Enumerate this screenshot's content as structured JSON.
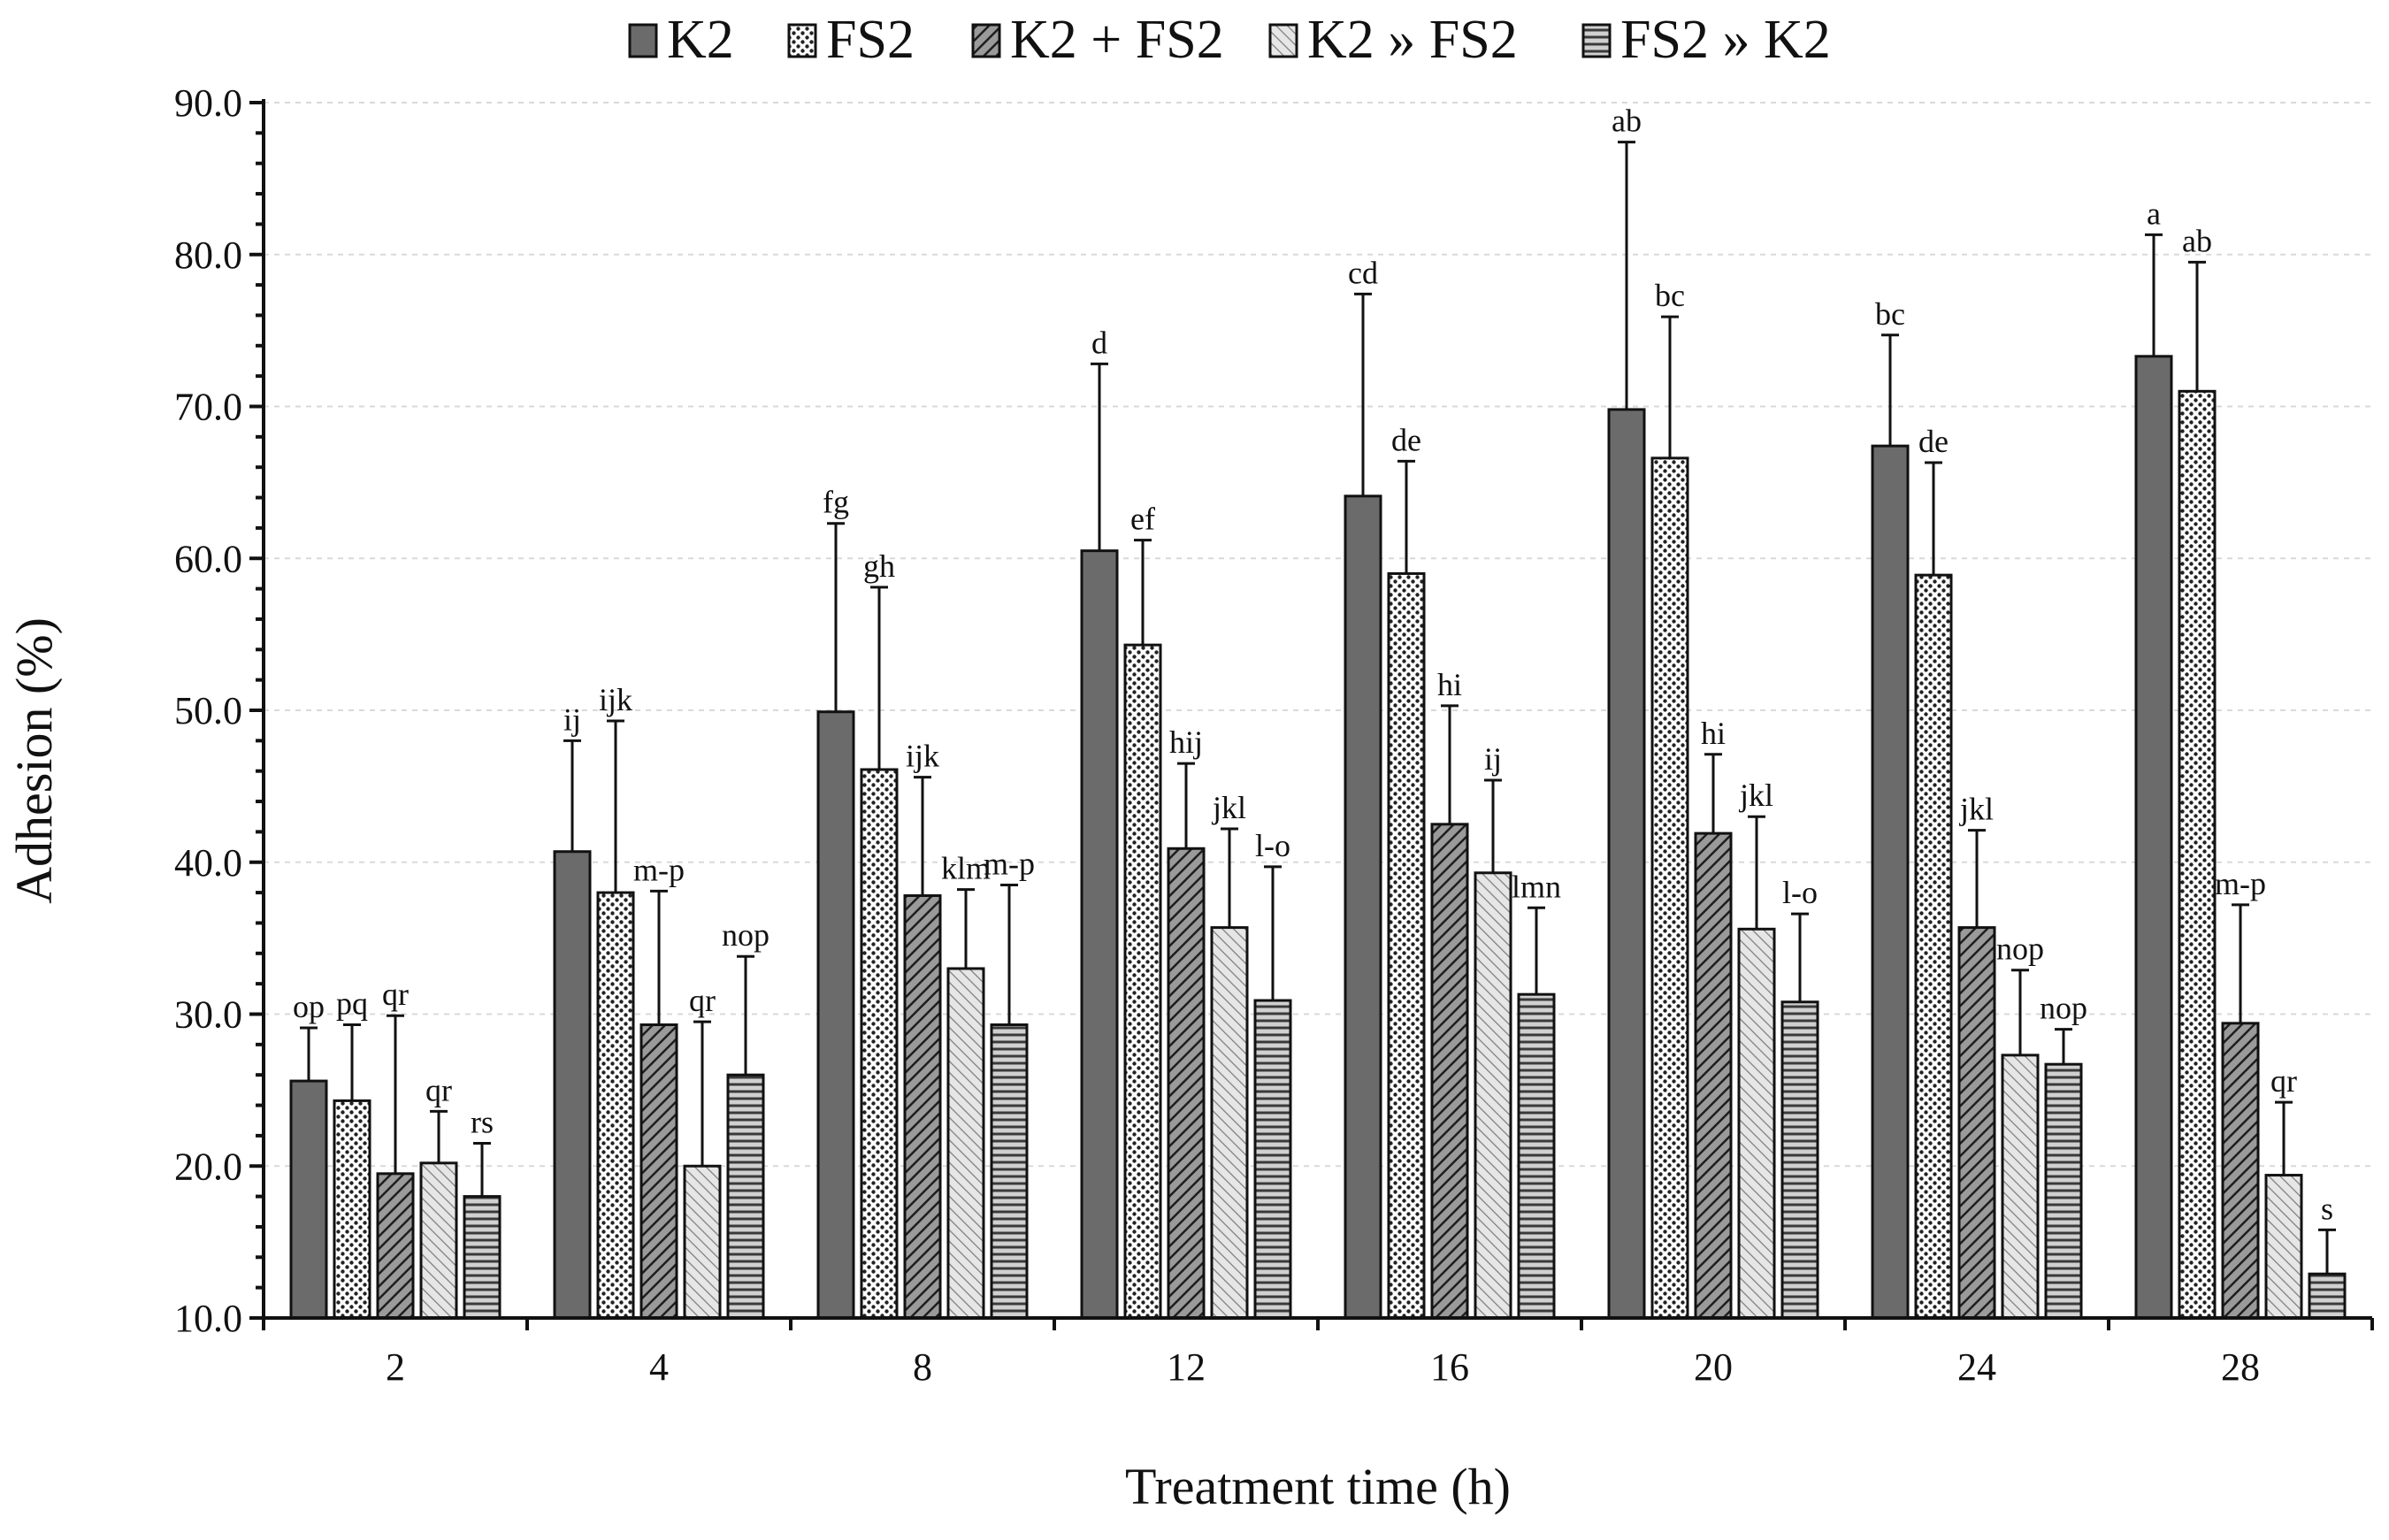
{
  "chart_data": {
    "type": "bar",
    "title": "",
    "xlabel": "Treatment time (h)",
    "ylabel": "Adhesion (%)",
    "ylim": [
      10.0,
      90.0
    ],
    "y_ticks": [
      "10.0",
      "20.0",
      "30.0",
      "40.0",
      "50.0",
      "60.0",
      "70.0",
      "80.0",
      "90.0"
    ],
    "grid": true,
    "legend_position": "top",
    "categories": [
      "2",
      "4",
      "8",
      "12",
      "16",
      "20",
      "24",
      "28"
    ],
    "series": [
      {
        "name": "K2",
        "pattern": "solid",
        "color": "#6b6b6b",
        "values": [
          25.6,
          40.7,
          49.9,
          60.5,
          64.1,
          69.8,
          67.4,
          73.3
        ],
        "errors": [
          3.5,
          7.3,
          12.4,
          12.3,
          13.3,
          17.6,
          7.3,
          8.0
        ],
        "labels": [
          "op",
          "ij",
          "fg",
          "d",
          "cd",
          "ab",
          "bc",
          "a"
        ]
      },
      {
        "name": "FS2",
        "pattern": "dots",
        "color": "#ffffff",
        "values": [
          24.3,
          38.0,
          46.1,
          54.3,
          59.0,
          66.6,
          58.9,
          71.0
        ],
        "errors": [
          5.0,
          11.3,
          12.0,
          6.9,
          7.4,
          9.3,
          7.4,
          8.5
        ],
        "labels": [
          "pq",
          "ijk",
          "gh",
          "ef",
          "de",
          "bc",
          "de",
          "ab"
        ]
      },
      {
        "name": "K2 + FS2",
        "pattern": "diag-dense",
        "color": "#5a5a5a",
        "values": [
          19.5,
          29.3,
          37.8,
          40.9,
          42.5,
          41.9,
          35.7,
          29.4
        ],
        "errors": [
          10.4,
          8.8,
          7.8,
          5.6,
          7.8,
          5.2,
          6.4,
          7.8
        ],
        "labels": [
          "qr",
          "m-p",
          "ijk",
          "hij",
          "hi",
          "hi",
          "jkl",
          "m-p"
        ]
      },
      {
        "name": "K2 » FS2",
        "pattern": "diag-light",
        "color": "#c8c8c8",
        "values": [
          20.2,
          20.0,
          33.0,
          35.7,
          39.3,
          35.6,
          27.3,
          19.4
        ],
        "errors": [
          3.4,
          9.5,
          5.2,
          6.5,
          6.1,
          7.4,
          5.6,
          4.8
        ],
        "labels": [
          "qr",
          "qr",
          "klm",
          "jkl",
          "ij",
          "jkl",
          "nop",
          "qr"
        ]
      },
      {
        "name": "FS2 » K2",
        "pattern": "horizontal",
        "color": "#7a7a7a",
        "values": [
          18.0,
          26.0,
          29.3,
          30.9,
          31.3,
          30.8,
          26.7,
          12.9
        ],
        "errors": [
          3.5,
          7.8,
          9.2,
          8.8,
          5.7,
          5.8,
          2.3,
          2.9
        ],
        "labels": [
          "rs",
          "nop",
          "m-p",
          "l-o",
          "lmn",
          "l-o",
          "nop",
          "s"
        ]
      }
    ]
  }
}
